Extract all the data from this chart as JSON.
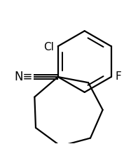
{
  "background_color": "#ffffff",
  "line_color": "#000000",
  "line_width": 1.6,
  "label_Cl": "Cl",
  "label_F": "F",
  "label_N": "N≡",
  "label_fontsize": 11,
  "figsize": [
    1.77,
    2.07
  ],
  "dpi": 100
}
